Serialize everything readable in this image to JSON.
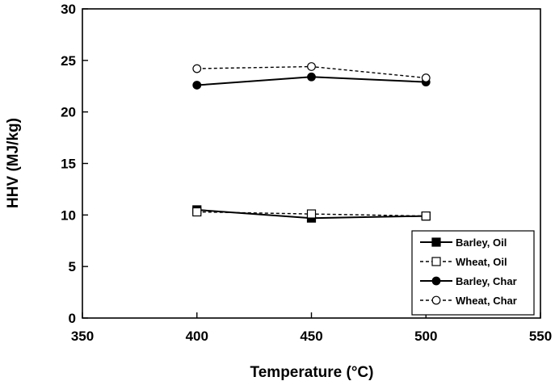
{
  "chart_data": {
    "type": "line",
    "title": "",
    "xlabel": "Temperature (°C)",
    "ylabel": "HHV (MJ/kg)",
    "xlim": [
      350,
      550
    ],
    "ylim": [
      0,
      30
    ],
    "xticks": [
      350,
      400,
      450,
      500,
      550
    ],
    "yticks": [
      0,
      5,
      10,
      15,
      20,
      25,
      30
    ],
    "grid": false,
    "legend_position": "bottom-right",
    "series": [
      {
        "name": "Barley, Oil",
        "x": [
          400,
          450,
          500
        ],
        "values": [
          10.5,
          9.7,
          9.9
        ],
        "marker": "square-filled",
        "line": "solid"
      },
      {
        "name": "Wheat, Oil",
        "x": [
          400,
          450,
          500
        ],
        "values": [
          10.3,
          10.1,
          9.9
        ],
        "marker": "square-open",
        "line": "dashed"
      },
      {
        "name": "Barley, Char",
        "x": [
          400,
          450,
          500
        ],
        "values": [
          22.6,
          23.4,
          22.9
        ],
        "marker": "circle-filled",
        "line": "solid"
      },
      {
        "name": "Wheat, Char",
        "x": [
          400,
          450,
          500
        ],
        "values": [
          24.2,
          24.4,
          23.3
        ],
        "marker": "circle-open",
        "line": "dashed"
      }
    ]
  }
}
